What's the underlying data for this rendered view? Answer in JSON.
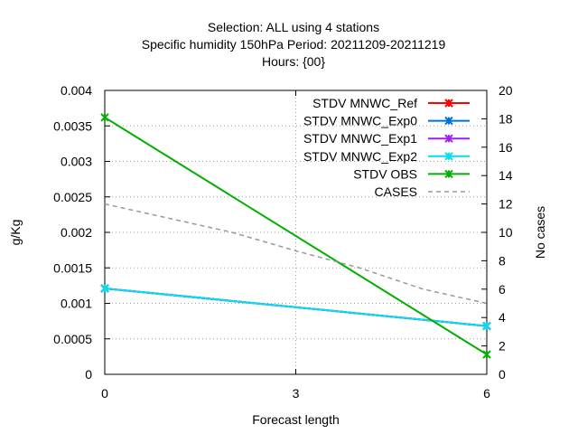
{
  "chart_data": {
    "type": "line",
    "title": [
      "Selection: ALL using     4 stations",
      "Specific humidity 150hPa   Period: 20211209-20211219",
      "Hours: {00}"
    ],
    "xlabel": "Forecast length",
    "ylabel": "g/Kg",
    "y2label": "No cases",
    "x": [
      0,
      3,
      6
    ],
    "x_ticks": [
      "0",
      "3",
      "6"
    ],
    "xlim": [
      0,
      6
    ],
    "ylim": [
      0,
      0.004
    ],
    "y_ticks": [
      "0",
      "0.0005",
      "0.001",
      "0.0015",
      "0.002",
      "0.0025",
      "0.003",
      "0.0035",
      "0.004"
    ],
    "y2lim": [
      0,
      20
    ],
    "y2_ticks": [
      "0",
      "2",
      "4",
      "6",
      "8",
      "10",
      "12",
      "14",
      "16",
      "18",
      "20"
    ],
    "grid": true,
    "legend_position": "top-right",
    "series": [
      {
        "name": "STDV MNWC_Ref",
        "color": "#ff0000",
        "marker": "x",
        "x": [
          0,
          6
        ],
        "values": [
          0.00121,
          0.00068
        ]
      },
      {
        "name": "STDV MNWC_Exp0",
        "color": "#0072d6",
        "marker": "x",
        "x": [
          0,
          6
        ],
        "values": [
          0.00121,
          0.00068
        ]
      },
      {
        "name": "STDV MNWC_Exp1",
        "color": "#a020f0",
        "marker": "x",
        "x": [
          0,
          6
        ],
        "values": [
          0.00121,
          0.00068
        ]
      },
      {
        "name": "STDV MNWC_Exp2",
        "color": "#00e0f0",
        "marker": "x",
        "x": [
          0,
          6
        ],
        "values": [
          0.00121,
          0.00068
        ]
      },
      {
        "name": "STDV OBS",
        "color": "#00b000",
        "marker": "x",
        "x": [
          0,
          6
        ],
        "values": [
          0.00362,
          0.00028
        ]
      },
      {
        "name": "CASES",
        "color": "#999999",
        "dashed": true,
        "axis": "y2",
        "x": [
          0,
          1,
          2,
          3,
          4,
          5,
          6
        ],
        "values": [
          12,
          11,
          10,
          8.7,
          7.5,
          6,
          5
        ]
      }
    ]
  }
}
